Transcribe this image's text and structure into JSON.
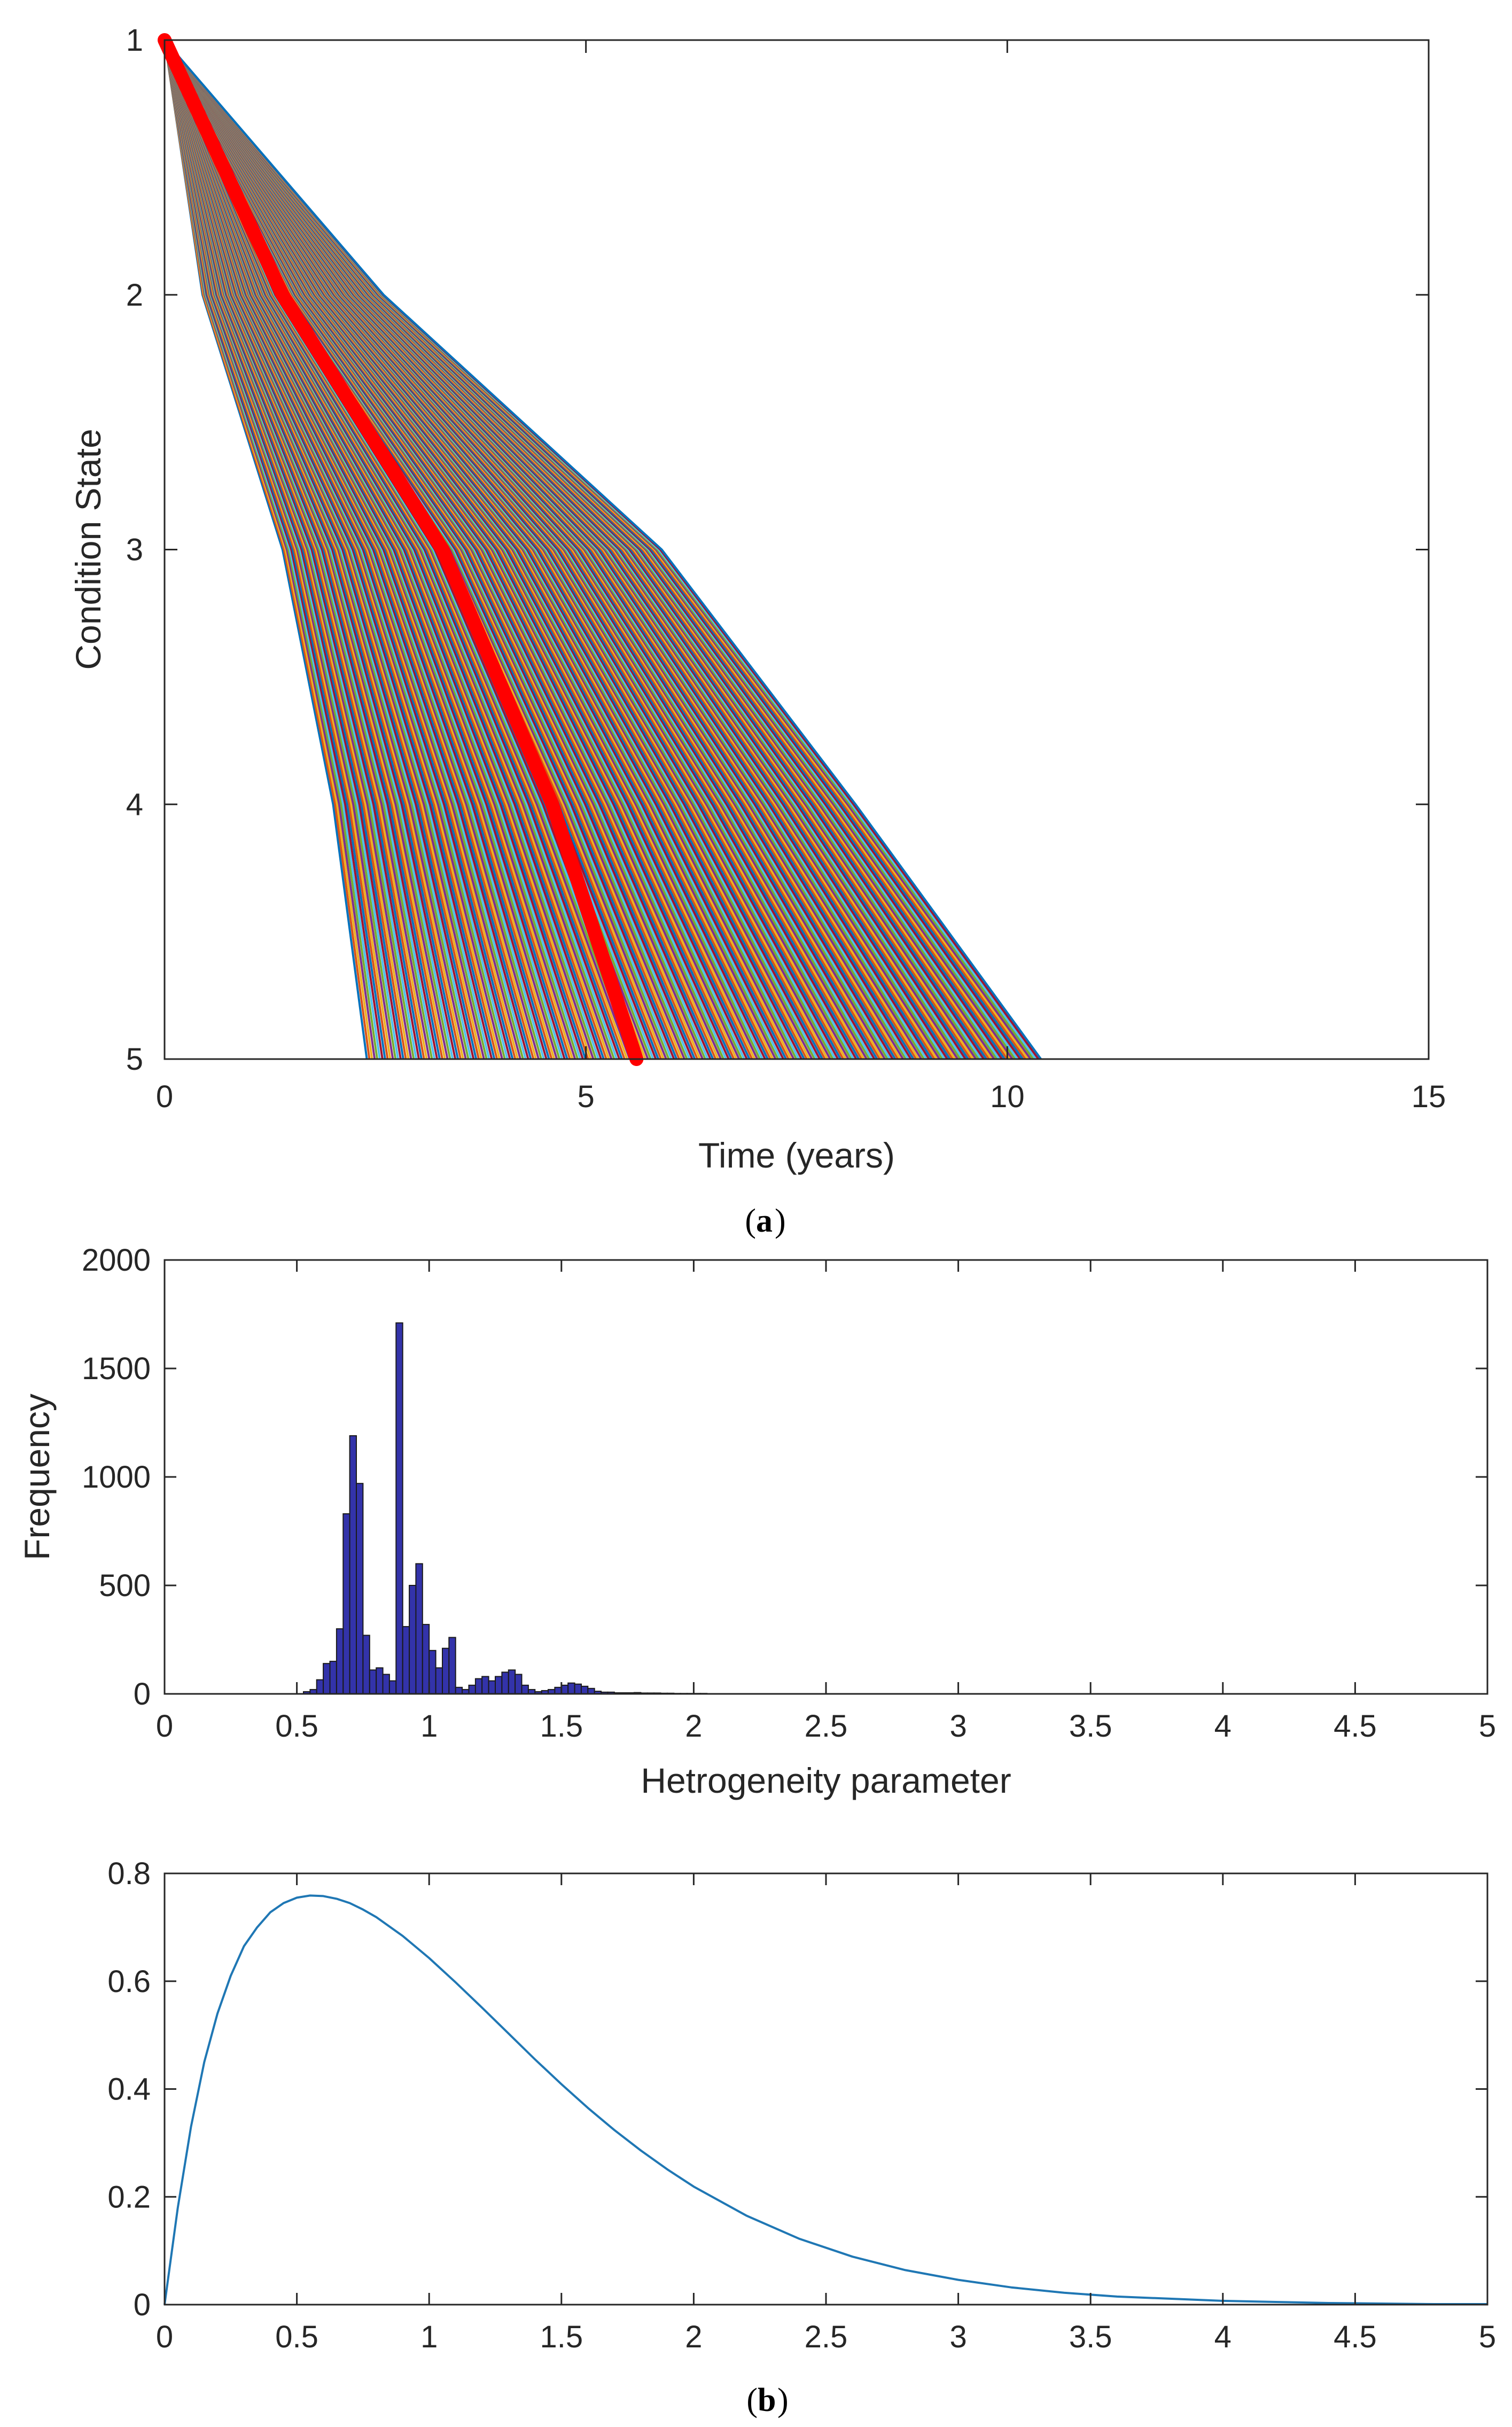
{
  "chart_data": [
    {
      "type": "line",
      "panel": "a",
      "title": "",
      "xlabel": "Time (years)",
      "ylabel": "Condition State",
      "xlim": [
        0,
        15
      ],
      "ylim": [
        5,
        1
      ],
      "y_reversed": true,
      "xticks": [
        "0",
        "5",
        "10",
        "15"
      ],
      "yticks": [
        "1",
        "2",
        "3",
        "4",
        "5"
      ],
      "description_series": "Several hundred simulated deterioration paths from condition state 1 to 5, each piecewise linear through states 1-5; fastest path reaches state 5 at about 2.4 years, slowest at about 10.4 years",
      "envelope": {
        "fastest": [
          [
            0,
            1
          ],
          [
            0.45,
            2
          ],
          [
            1.4,
            3
          ],
          [
            2.0,
            4
          ],
          [
            2.4,
            5
          ]
        ],
        "slowest": [
          [
            0,
            1
          ],
          [
            2.6,
            2
          ],
          [
            5.9,
            3
          ],
          [
            8.2,
            4
          ],
          [
            10.4,
            5
          ]
        ]
      },
      "highlight_series": {
        "name": "mean path",
        "color": "#ff0000",
        "points": [
          [
            0,
            1
          ],
          [
            1.4,
            2
          ],
          [
            3.3,
            3
          ],
          [
            4.6,
            4
          ],
          [
            5.6,
            5
          ]
        ]
      },
      "n_paths": 260
    },
    {
      "type": "bar",
      "panel": "b-top",
      "title": "",
      "xlabel": "Hetrogeneity parameter",
      "ylabel": "Frequency",
      "xlim": [
        0,
        5
      ],
      "ylim": [
        0,
        2000
      ],
      "xticks": [
        "0",
        "0.5",
        "1",
        "1.5",
        "2",
        "2.5",
        "3",
        "3.5",
        "4",
        "4.5",
        "5"
      ],
      "yticks": [
        "0",
        "500",
        "1000",
        "1500",
        "2000"
      ],
      "bar_color": "#3333aa",
      "bin_width": 0.025,
      "bin_starts": [
        0.525,
        0.55,
        0.575,
        0.6,
        0.625,
        0.65,
        0.675,
        0.7,
        0.725,
        0.75,
        0.775,
        0.8,
        0.825,
        0.85,
        0.875,
        0.9,
        0.925,
        0.95,
        0.975,
        1.0,
        1.025,
        1.05,
        1.075,
        1.1,
        1.125,
        1.15,
        1.175,
        1.2,
        1.225,
        1.25,
        1.275,
        1.3,
        1.325,
        1.35,
        1.375,
        1.4,
        1.425,
        1.45,
        1.475,
        1.5,
        1.525,
        1.55,
        1.575,
        1.6,
        1.625,
        1.65,
        1.675,
        1.7,
        1.725,
        1.75,
        1.775,
        1.8,
        1.825,
        1.85,
        1.875,
        1.9,
        1.925,
        1.95,
        1.975,
        2.0,
        2.025,
        2.05,
        2.075,
        2.1,
        2.125,
        2.15,
        2.175,
        2.2,
        2.225,
        2.25,
        2.275,
        2.3,
        2.325,
        2.35,
        2.375,
        2.4
      ],
      "values": [
        10,
        20,
        65,
        140,
        150,
        300,
        830,
        1190,
        970,
        270,
        110,
        120,
        90,
        60,
        1710,
        310,
        500,
        600,
        320,
        200,
        120,
        210,
        260,
        30,
        20,
        40,
        70,
        80,
        60,
        80,
        100,
        110,
        90,
        40,
        20,
        10,
        15,
        20,
        30,
        40,
        50,
        45,
        35,
        25,
        12,
        8,
        8,
        5,
        5,
        5,
        6,
        4,
        4,
        4,
        3,
        3,
        2,
        2,
        2,
        2,
        2,
        1,
        1,
        1,
        1,
        1,
        1,
        1,
        1,
        1,
        1,
        1,
        1,
        1,
        1,
        1
      ]
    },
    {
      "type": "line",
      "panel": "b-bottom",
      "title": "",
      "xlabel": "",
      "ylabel": "",
      "xlim": [
        0,
        5
      ],
      "ylim": [
        0,
        0.8
      ],
      "xticks": [
        "0",
        "0.5",
        "1",
        "1.5",
        "2",
        "2.5",
        "3",
        "3.5",
        "4",
        "4.5",
        "5"
      ],
      "yticks": [
        "0",
        "0.2",
        "0.4",
        "0.6",
        "0.8"
      ],
      "line_color": "#1f77b4",
      "series": [
        {
          "name": "density",
          "x": [
            0,
            0.05,
            0.1,
            0.15,
            0.2,
            0.25,
            0.3,
            0.35,
            0.4,
            0.45,
            0.5,
            0.55,
            0.6,
            0.65,
            0.7,
            0.75,
            0.8,
            0.9,
            1.0,
            1.1,
            1.2,
            1.3,
            1.4,
            1.5,
            1.6,
            1.7,
            1.8,
            1.9,
            2.0,
            2.2,
            2.4,
            2.6,
            2.8,
            3.0,
            3.2,
            3.4,
            3.6,
            3.8,
            4.0,
            4.2,
            4.4,
            4.6,
            4.8,
            5.0
          ],
          "values": [
            0,
            0.18,
            0.33,
            0.45,
            0.54,
            0.61,
            0.665,
            0.7,
            0.728,
            0.745,
            0.755,
            0.759,
            0.758,
            0.753,
            0.745,
            0.733,
            0.719,
            0.684,
            0.643,
            0.598,
            0.551,
            0.503,
            0.455,
            0.409,
            0.365,
            0.324,
            0.286,
            0.251,
            0.219,
            0.165,
            0.122,
            0.089,
            0.064,
            0.046,
            0.032,
            0.022,
            0.015,
            0.011,
            0.007,
            0.005,
            0.003,
            0.002,
            0.001,
            0.001
          ]
        }
      ]
    }
  ],
  "captions": {
    "a": "a",
    "b": "b"
  }
}
